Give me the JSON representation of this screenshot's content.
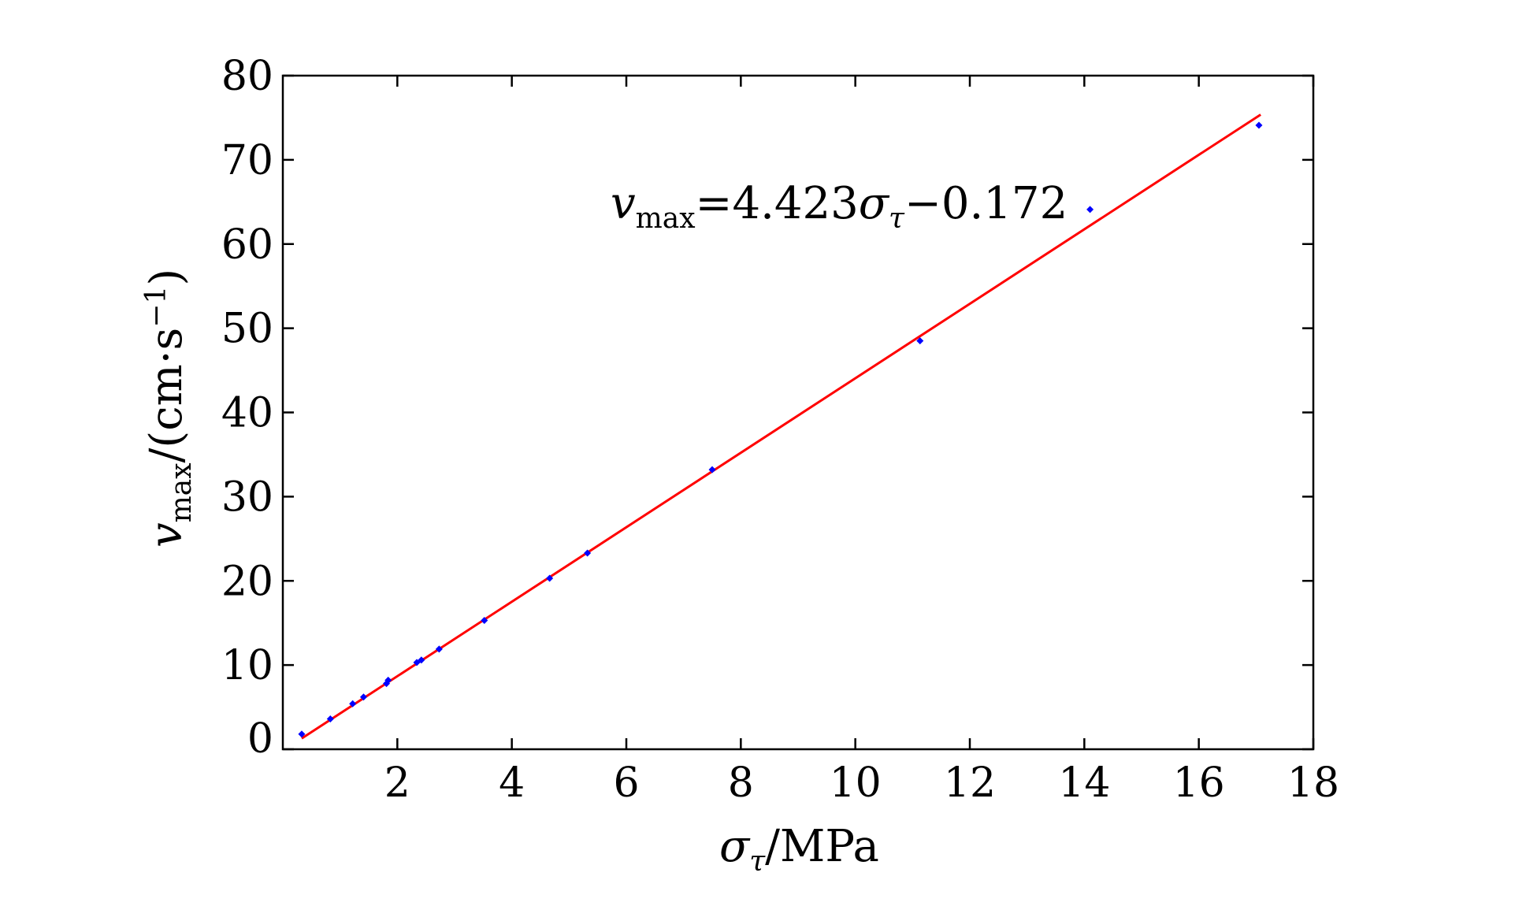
{
  "chart_data": {
    "type": "scatter",
    "x_label": {
      "main": "σ",
      "sub": "τ",
      "rest": "/MPa"
    },
    "y_label": {
      "main": "v",
      "sub": "max",
      "rest": "/(cm·s",
      "sup": "−1",
      "close": ")"
    },
    "annotation": {
      "v": "v",
      "sub": "max",
      "mid": "=4.423",
      "sigma": "σ",
      "tau": "τ",
      "rest": "−0.172"
    },
    "xlim": [
      0,
      18
    ],
    "ylim": [
      0,
      80
    ],
    "x_ticks": [
      2,
      4,
      6,
      8,
      10,
      12,
      14,
      16,
      18
    ],
    "y_ticks": [
      0,
      10,
      20,
      30,
      40,
      50,
      60,
      70,
      80
    ],
    "x_tick_labels": [
      "2",
      "4",
      "6",
      "8",
      "10",
      "12",
      "14",
      "16",
      "18"
    ],
    "y_tick_labels": [
      "0",
      "10",
      "20",
      "30",
      "40",
      "50",
      "60",
      "70",
      "80"
    ],
    "grid": false,
    "legend": false,
    "series": [
      {
        "kind": "points",
        "color": "#0000ff",
        "x": [
          0.33,
          0.83,
          1.22,
          1.41,
          1.81,
          1.84,
          2.34,
          2.42,
          2.73,
          3.52,
          4.66,
          5.32,
          7.5,
          11.13,
          14.1,
          17.05
        ],
        "y": [
          1.8,
          3.6,
          5.4,
          6.2,
          7.8,
          8.2,
          10.3,
          10.6,
          11.9,
          15.3,
          20.3,
          23.3,
          33.2,
          48.5,
          64.1,
          74.1
        ]
      },
      {
        "kind": "fit-line",
        "color": "#ff0000",
        "slope": 4.423,
        "intercept": -0.172,
        "x_range": [
          0.33,
          17.08
        ]
      }
    ]
  }
}
